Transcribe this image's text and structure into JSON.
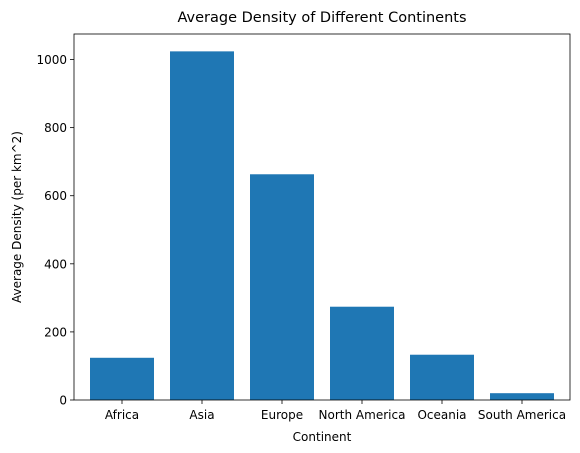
{
  "chart_data": {
    "type": "bar",
    "title": "Average Density of Different Continents",
    "xlabel": "Continent",
    "ylabel": "Average Density (per km^2)",
    "categories": [
      "Africa",
      "Asia",
      "Europe",
      "North America",
      "Oceania",
      "South America"
    ],
    "values": [
      124,
      1024,
      663,
      274,
      133,
      20
    ],
    "ylim": [
      0,
      1075
    ],
    "yticks": [
      0,
      200,
      400,
      600,
      800,
      1000
    ],
    "bar_color": "#1f77b4",
    "grid": false,
    "legend": "none"
  }
}
